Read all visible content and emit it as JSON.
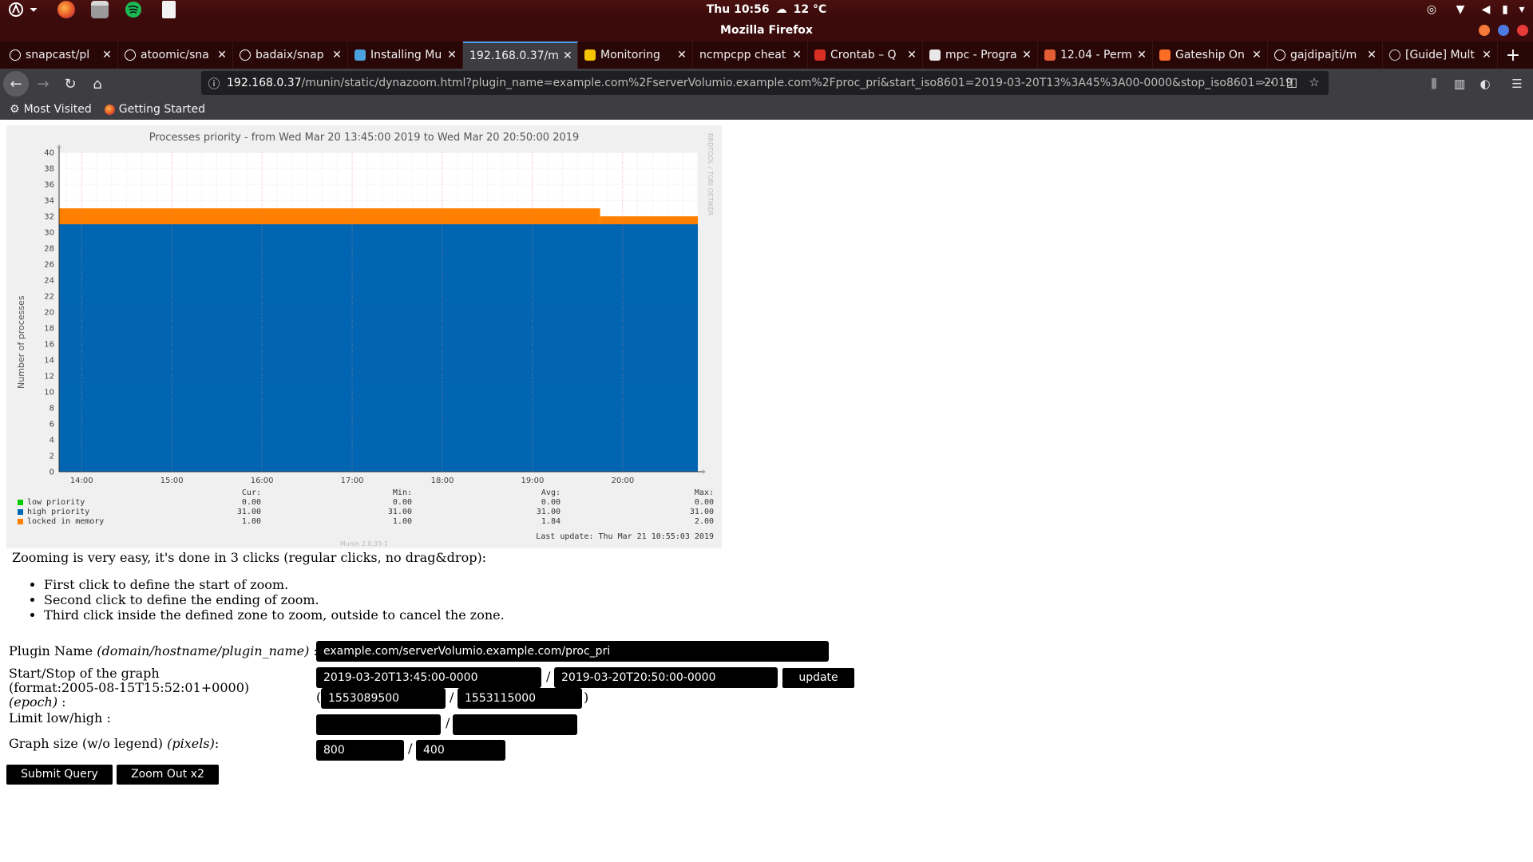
{
  "top_panel": {
    "clock": "Thu 10:56",
    "weather": "12 °C",
    "launcher_icons": [
      "activities-icon",
      "firefox-icon",
      "files-icon",
      "spotify-icon",
      "text-editor-icon"
    ]
  },
  "window": {
    "title": "Mozilla Firefox"
  },
  "tabs": [
    {
      "label": "snapcast/pl",
      "favicon": "github-icon",
      "active": false
    },
    {
      "label": "atoomic/sna",
      "favicon": "github-icon",
      "active": false
    },
    {
      "label": "badaix/snap",
      "favicon": "github-icon",
      "active": false
    },
    {
      "label": "Installing Mu",
      "favicon": "wordpress-icon",
      "active": false
    },
    {
      "label": "192.168.0.37/m",
      "favicon": "",
      "active": true
    },
    {
      "label": "Monitoring",
      "favicon": "bookmark-icon",
      "active": false
    },
    {
      "label": "ncmpcpp cheat",
      "favicon": "",
      "active": false
    },
    {
      "label": "Crontab – Q",
      "favicon": "hash-icon",
      "active": false
    },
    {
      "label": "mpc - Progra",
      "favicon": "page-icon",
      "active": false
    },
    {
      "label": "12.04 - Perm",
      "favicon": "askubuntu-icon",
      "active": false
    },
    {
      "label": "Gateship On",
      "favicon": "gitlab-icon",
      "active": false
    },
    {
      "label": "gajdipajti/m",
      "favicon": "github-icon",
      "active": false
    },
    {
      "label": "[Guide] Mult",
      "favicon": "power-icon",
      "active": false
    }
  ],
  "urlbar": {
    "host": "192.168.0.37",
    "path": "/munin/static/dynazoom.html?plugin_name=example.com%2FserverVolumio.example.com%2Fproc_pri&start_iso8601=2019-03-20T13%3A45%3A00-0000&stop_iso8601=2019"
  },
  "bookmarks": [
    {
      "label": "Most Visited",
      "icon": "gear-icon"
    },
    {
      "label": "Getting Started",
      "icon": "firefox-icon"
    }
  ],
  "chart_data": {
    "type": "area",
    "title": "Processes priority - from Wed Mar 20 13:45:00 2019 to Wed Mar 20 20:50:00 2019",
    "ylabel": "Number of processes",
    "xlabel": "",
    "x_ticks": [
      "14:00",
      "15:00",
      "16:00",
      "17:00",
      "18:00",
      "19:00",
      "20:00"
    ],
    "y_ticks": [
      0,
      2,
      4,
      6,
      8,
      10,
      12,
      14,
      16,
      18,
      20,
      22,
      24,
      26,
      28,
      30,
      32,
      34,
      36,
      38,
      40
    ],
    "ylim": [
      0,
      40
    ],
    "x_range": [
      "13:45",
      "20:50"
    ],
    "stacked": true,
    "grid": true,
    "series": [
      {
        "name": "low priority",
        "color": "#00cc00",
        "segments": [
          {
            "from": "13:45",
            "to": "20:50",
            "value": 0
          }
        ]
      },
      {
        "name": "high priority",
        "color": "#0066b3",
        "segments": [
          {
            "from": "13:45",
            "to": "20:50",
            "value": 31
          }
        ]
      },
      {
        "name": "locked in memory",
        "color": "#ff8000",
        "segments": [
          {
            "from": "13:45",
            "to": "19:45",
            "value": 2
          },
          {
            "from": "19:45",
            "to": "20:50",
            "value": 1
          }
        ]
      }
    ],
    "legend": {
      "headers": {
        "cur": "Cur:",
        "min": "Min:",
        "avg": "Avg:",
        "max": "Max:"
      },
      "rows": [
        {
          "name": "low priority",
          "color": "#00cc00",
          "cur": "0.00",
          "min": "0.00",
          "avg": "0.00",
          "max": "0.00"
        },
        {
          "name": "high priority",
          "color": "#0066b3",
          "cur": "31.00",
          "min": "31.00",
          "avg": "31.00",
          "max": "31.00"
        },
        {
          "name": "locked in memory",
          "color": "#ff8000",
          "cur": "1.00",
          "min": "1.00",
          "avg": "1.84",
          "max": "2.00"
        }
      ]
    },
    "last_update": "Last update:  Thu Mar 21 10:55:03 2019",
    "side_credit": "RRDTOOL / TOBI OETIKER",
    "footer": "Munin 2.0.33-1"
  },
  "page": {
    "intro": "Zooming is very easy, it's done in 3 clicks (regular clicks, no drag&drop):",
    "steps": [
      "First click to define the start of zoom.",
      "Second click to define the ending of zoom.",
      "Third click inside the defined zone to zoom, outside to cancel the zone."
    ],
    "form": {
      "plugin_label": "Plugin Name ",
      "plugin_label_em": "(domain/hostname/plugin_name)",
      "plugin_label_tail": " :",
      "plugin_value": "example.com/serverVolumio.example.com/proc_pri",
      "start_stop_label": "Start/Stop of the graph",
      "format_label": "(format:2005-08-15T15:52:01+0000)",
      "epoch_label_em": "(epoch)",
      "epoch_label_tail": " :",
      "start_iso": "2019-03-20T13:45:00-0000",
      "stop_iso": "2019-03-20T20:50:00-0000",
      "update_label": "update",
      "start_epoch": "1553089500",
      "stop_epoch": "1553115000",
      "limit_label": "Limit low/high :",
      "limit_low": "",
      "limit_high": "",
      "size_label": "Graph size (w/o legend) ",
      "size_label_em": "(pixels)",
      "size_label_tail": ":",
      "size_w": "800",
      "size_h": "400",
      "submit_label": "Submit Query",
      "zoomout_label": "Zoom Out x2"
    }
  }
}
